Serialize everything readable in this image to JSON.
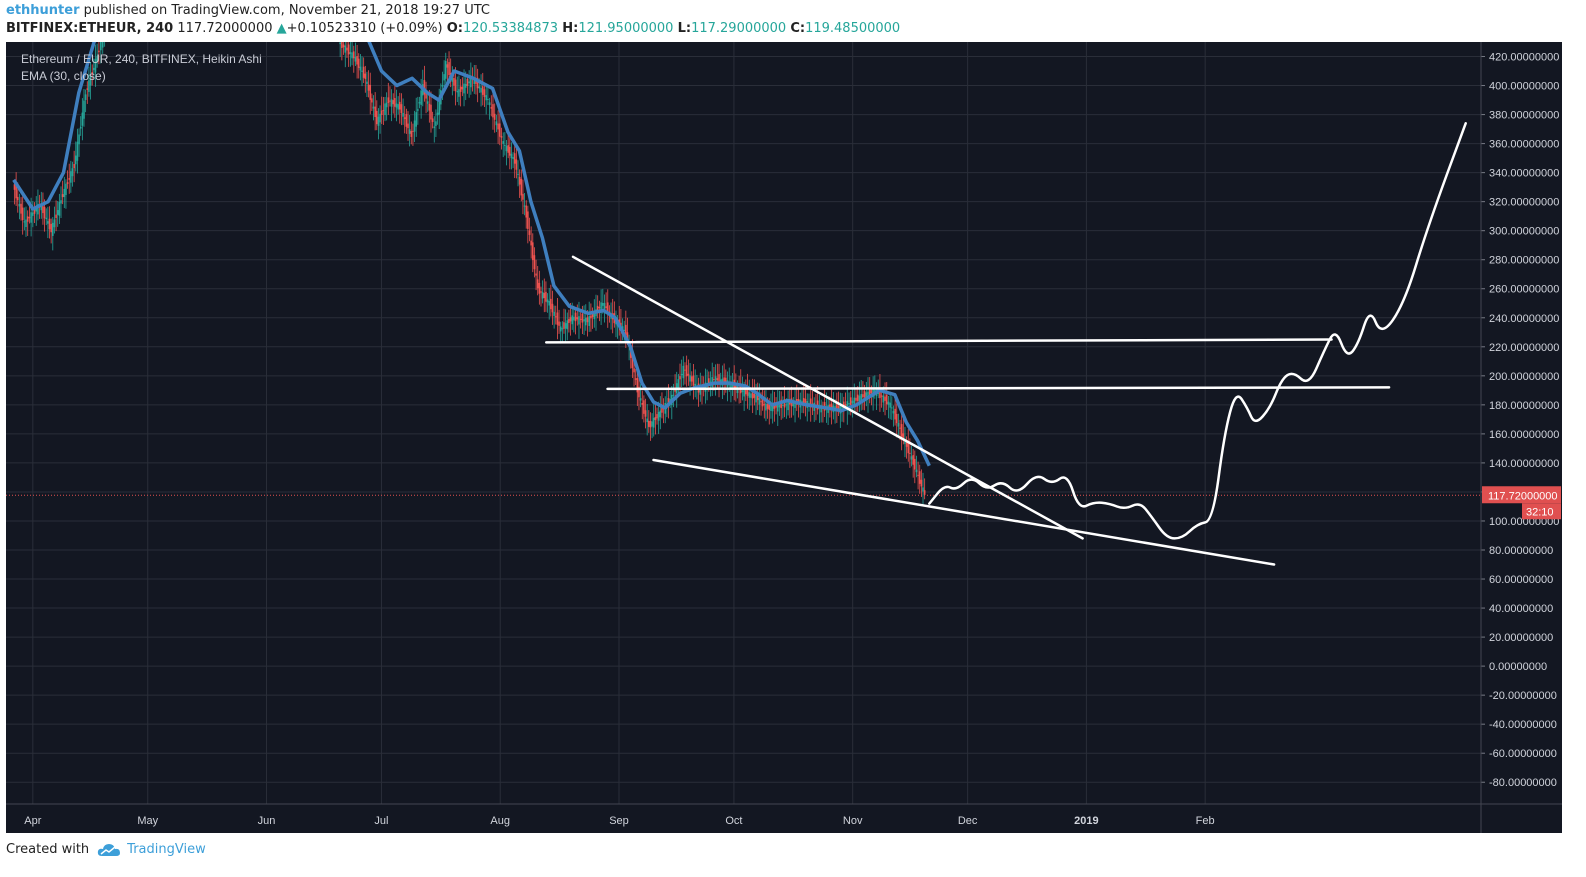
{
  "header": {
    "author": "ethhunter",
    "published_text": " published on TradingView.com, November 21, 2018 19:27 UTC",
    "symbol": "BITFINEX:ETHEUR, 240",
    "last_price": "117.72000000",
    "change_arrow": "▲",
    "change": "+0.10523310 (+0.09%)",
    "open_label": "O:",
    "open": "120.53384873",
    "high_label": "H:",
    "high": "121.95000000",
    "low_label": "L:",
    "low": "117.29000000",
    "close_label": "C:",
    "close": "119.48500000"
  },
  "legend": {
    "title": "Ethereum / EUR, 240, BITFINEX, Heikin Ashi",
    "indicator": "EMA (30, close)"
  },
  "footer": {
    "created_with": "Created with",
    "brand": "TradingView",
    "icon": "tradingview-cloud-logo-icon"
  },
  "colors": {
    "background": "#131722",
    "grid": "#2a2e39",
    "ema": "#3f7fbf",
    "candle_up": "#26a69a",
    "candle_down": "#ef5350",
    "price_line": "#e05050",
    "drawing": "#ffffff"
  },
  "chart_data": {
    "type": "line",
    "style": "heikin-ashi-candles",
    "ylim": [
      -95,
      430
    ],
    "y_ticks": [
      "420.00000000",
      "400.00000000",
      "380.00000000",
      "360.00000000",
      "340.00000000",
      "320.00000000",
      "300.00000000",
      "280.00000000",
      "260.00000000",
      "240.00000000",
      "220.00000000",
      "200.00000000",
      "180.00000000",
      "160.00000000",
      "140.00000000",
      "120.00000000",
      "100.00000000",
      "80.00000000",
      "60.00000000",
      "40.00000000",
      "20.00000000",
      "0.00000000",
      "-20.00000000",
      "-40.00000000",
      "-60.00000000",
      "-80.00000000"
    ],
    "y_tick_values": [
      420,
      400,
      380,
      360,
      340,
      320,
      300,
      280,
      260,
      240,
      220,
      200,
      180,
      160,
      140,
      120,
      100,
      80,
      60,
      40,
      20,
      0,
      -20,
      -40,
      -60,
      -80
    ],
    "x_start": "2018-03-25",
    "x_end": "2019-04-14",
    "x_ticks": [
      {
        "label": "Apr",
        "date": "2018-04-01"
      },
      {
        "label": "May",
        "date": "2018-05-01"
      },
      {
        "label": "Jun",
        "date": "2018-06-01"
      },
      {
        "label": "Jul",
        "date": "2018-07-01"
      },
      {
        "label": "Aug",
        "date": "2018-08-01"
      },
      {
        "label": "Sep",
        "date": "2018-09-01"
      },
      {
        "label": "Oct",
        "date": "2018-10-01"
      },
      {
        "label": "Nov",
        "date": "2018-11-01"
      },
      {
        "label": "Dec",
        "date": "2018-12-01"
      },
      {
        "label": "2019",
        "date": "2019-01-01"
      },
      {
        "label": "Feb",
        "date": "2019-02-01"
      }
    ],
    "current_price": {
      "value": 117.72,
      "label": "117.72000000",
      "countdown": "32:10"
    },
    "series": [
      {
        "name": "EMA (30, close)",
        "points": [
          [
            "2018-03-27",
            335
          ],
          [
            "2018-04-01",
            315
          ],
          [
            "2018-04-05",
            320
          ],
          [
            "2018-04-09",
            340
          ],
          [
            "2018-04-13",
            395
          ],
          [
            "2018-04-17",
            430
          ],
          [
            "2018-04-20",
            445
          ],
          [
            "2018-06-27",
            435
          ],
          [
            "2018-07-01",
            410
          ],
          [
            "2018-07-05",
            400
          ],
          [
            "2018-07-09",
            405
          ],
          [
            "2018-07-13",
            395
          ],
          [
            "2018-07-16",
            390
          ],
          [
            "2018-07-20",
            410
          ],
          [
            "2018-07-25",
            405
          ],
          [
            "2018-07-30",
            398
          ],
          [
            "2018-08-03",
            368
          ],
          [
            "2018-08-06",
            355
          ],
          [
            "2018-08-09",
            320
          ],
          [
            "2018-08-12",
            295
          ],
          [
            "2018-08-15",
            262
          ],
          [
            "2018-08-19",
            248
          ],
          [
            "2018-08-24",
            243
          ],
          [
            "2018-08-28",
            245
          ],
          [
            "2018-08-31",
            240
          ],
          [
            "2018-09-04",
            220
          ],
          [
            "2018-09-07",
            195
          ],
          [
            "2018-09-10",
            182
          ],
          [
            "2018-09-13",
            178
          ],
          [
            "2018-09-17",
            188
          ],
          [
            "2018-09-21",
            192
          ],
          [
            "2018-09-26",
            195
          ],
          [
            "2018-09-30",
            195
          ],
          [
            "2018-10-04",
            193
          ],
          [
            "2018-10-07",
            188
          ],
          [
            "2018-10-11",
            180
          ],
          [
            "2018-10-15",
            183
          ],
          [
            "2018-10-20",
            180
          ],
          [
            "2018-10-25",
            178
          ],
          [
            "2018-10-29",
            176
          ],
          [
            "2018-11-02",
            180
          ],
          [
            "2018-11-08",
            190
          ],
          [
            "2018-11-12",
            187
          ],
          [
            "2018-11-15",
            168
          ],
          [
            "2018-11-18",
            155
          ],
          [
            "2018-11-21",
            138
          ]
        ]
      },
      {
        "name": "Heikin Ashi",
        "points": [
          [
            "2018-03-27",
            332
          ],
          [
            "2018-03-30",
            305
          ],
          [
            "2018-04-03",
            318
          ],
          [
            "2018-04-06",
            300
          ],
          [
            "2018-04-09",
            325
          ],
          [
            "2018-04-12",
            345
          ],
          [
            "2018-04-15",
            395
          ],
          [
            "2018-04-18",
            420
          ],
          [
            "2018-04-20",
            440
          ],
          [
            "2018-05-31",
            425
          ],
          [
            "2018-06-20",
            430
          ],
          [
            "2018-06-24",
            420
          ],
          [
            "2018-06-27",
            405
          ],
          [
            "2018-06-30",
            375
          ],
          [
            "2018-07-03",
            390
          ],
          [
            "2018-07-06",
            385
          ],
          [
            "2018-07-09",
            365
          ],
          [
            "2018-07-12",
            400
          ],
          [
            "2018-07-15",
            370
          ],
          [
            "2018-07-18",
            415
          ],
          [
            "2018-07-21",
            395
          ],
          [
            "2018-07-25",
            405
          ],
          [
            "2018-07-29",
            390
          ],
          [
            "2018-08-02",
            360
          ],
          [
            "2018-08-05",
            348
          ],
          [
            "2018-08-08",
            310
          ],
          [
            "2018-08-11",
            260
          ],
          [
            "2018-08-14",
            250
          ],
          [
            "2018-08-17",
            232
          ],
          [
            "2018-08-20",
            240
          ],
          [
            "2018-08-24",
            238
          ],
          [
            "2018-08-28",
            250
          ],
          [
            "2018-08-31",
            238
          ],
          [
            "2018-09-03",
            230
          ],
          [
            "2018-09-06",
            190
          ],
          [
            "2018-09-09",
            165
          ],
          [
            "2018-09-12",
            175
          ],
          [
            "2018-09-15",
            185
          ],
          [
            "2018-09-18",
            205
          ],
          [
            "2018-09-22",
            190
          ],
          [
            "2018-09-26",
            198
          ],
          [
            "2018-09-30",
            195
          ],
          [
            "2018-10-03",
            190
          ],
          [
            "2018-10-07",
            185
          ],
          [
            "2018-10-10",
            178
          ],
          [
            "2018-10-14",
            180
          ],
          [
            "2018-10-19",
            182
          ],
          [
            "2018-10-24",
            178
          ],
          [
            "2018-10-29",
            178
          ],
          [
            "2018-11-03",
            185
          ],
          [
            "2018-11-07",
            190
          ],
          [
            "2018-11-11",
            180
          ],
          [
            "2018-11-14",
            160
          ],
          [
            "2018-11-17",
            140
          ],
          [
            "2018-11-20",
            118
          ]
        ]
      }
    ],
    "drawings": [
      {
        "name": "descending-resistance-line",
        "type": "trendline",
        "points": [
          [
            "2018-08-20",
            282
          ],
          [
            "2018-12-31",
            88
          ]
        ]
      },
      {
        "name": "falling-wedge-support-line",
        "type": "trendline",
        "points": [
          [
            "2018-09-10",
            142
          ],
          [
            "2019-02-19",
            70
          ]
        ]
      },
      {
        "name": "upper-horizontal-resistance",
        "type": "hline",
        "points": [
          [
            "2018-08-13",
            223
          ],
          [
            "2019-03-06",
            225
          ]
        ]
      },
      {
        "name": "lower-horizontal-resistance",
        "type": "hline",
        "points": [
          [
            "2018-08-29",
            191
          ],
          [
            "2019-03-21",
            192
          ]
        ]
      },
      {
        "name": "projected-price-path",
        "type": "freehand",
        "points": [
          [
            "2018-11-21",
            112
          ],
          [
            "2018-11-25",
            125
          ],
          [
            "2018-11-28",
            121
          ],
          [
            "2018-12-02",
            131
          ],
          [
            "2018-12-06",
            121
          ],
          [
            "2018-12-10",
            128
          ],
          [
            "2018-12-14",
            118
          ],
          [
            "2018-12-19",
            133
          ],
          [
            "2018-12-23",
            125
          ],
          [
            "2018-12-27",
            133
          ],
          [
            "2018-12-30",
            108
          ],
          [
            "2019-01-03",
            113
          ],
          [
            "2019-01-07",
            112
          ],
          [
            "2019-01-11",
            108
          ],
          [
            "2019-01-15",
            113
          ],
          [
            "2019-01-18",
            103
          ],
          [
            "2019-01-22",
            88
          ],
          [
            "2019-01-26",
            88
          ],
          [
            "2019-01-30",
            98
          ],
          [
            "2019-02-03",
            100
          ],
          [
            "2019-02-06",
            160
          ],
          [
            "2019-02-09",
            190
          ],
          [
            "2019-02-12",
            178
          ],
          [
            "2019-02-14",
            166
          ],
          [
            "2019-02-18",
            178
          ],
          [
            "2019-02-21",
            198
          ],
          [
            "2019-02-24",
            203
          ],
          [
            "2019-02-28",
            193
          ],
          [
            "2019-03-04",
            217
          ],
          [
            "2019-03-07",
            233
          ],
          [
            "2019-03-10",
            212
          ],
          [
            "2019-03-13",
            222
          ],
          [
            "2019-03-16",
            247
          ],
          [
            "2019-03-19",
            227
          ],
          [
            "2019-03-25",
            250
          ],
          [
            "2019-03-31",
            302
          ],
          [
            "2019-04-10",
            374
          ]
        ]
      }
    ]
  }
}
